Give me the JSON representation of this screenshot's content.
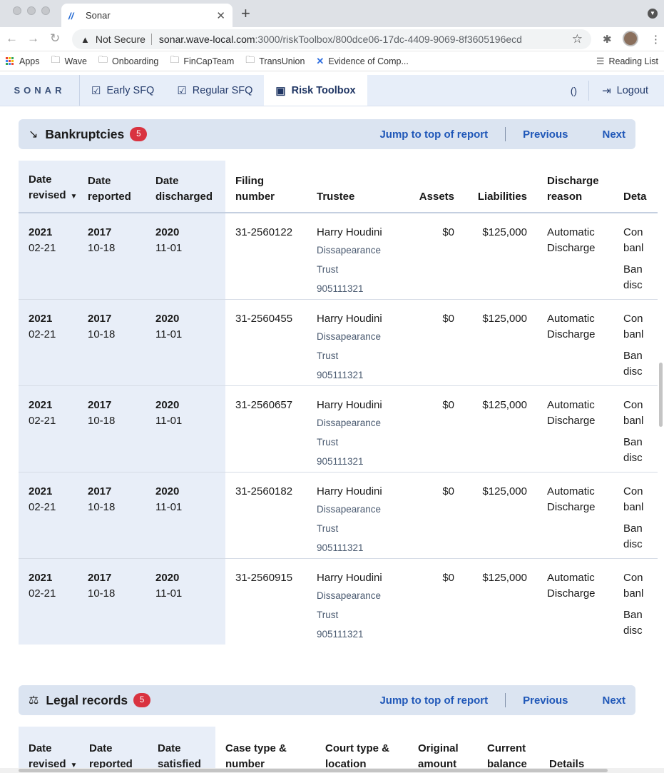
{
  "browser": {
    "tab_title": "Sonar",
    "url_warning": "Not Secure",
    "url_host": "sonar.wave-local.com",
    "url_rest": ":3000/riskToolbox/800dce06-17dc-4409-9069-8f3605196ecd",
    "bookmarks": [
      "Apps",
      "Wave",
      "Onboarding",
      "FinCapTeam",
      "TransUnion",
      "Evidence of Comp..."
    ],
    "reading_list": "Reading List"
  },
  "app": {
    "logo": "SONAR",
    "nav": [
      "Early SFQ",
      "Regular SFQ",
      "Risk Toolbox"
    ],
    "paren": "()",
    "logout": "Logout"
  },
  "bankruptcies": {
    "title": "Bankruptcies",
    "count": "5",
    "jump": "Jump to top of report",
    "previous": "Previous",
    "next": "Next",
    "headers": {
      "date_revised_1": "Date",
      "date_revised_2": "revised",
      "date_reported_1": "Date",
      "date_reported_2": "reported",
      "date_discharged_1": "Date",
      "date_discharged_2": "discharged",
      "filing_1": "Filing",
      "filing_2": "number",
      "trustee": "Trustee",
      "assets": "Assets",
      "liabilities": "Liabilities",
      "reason_1": "Discharge",
      "reason_2": "reason",
      "details": "Deta"
    },
    "rows": [
      {
        "rev_y": "2021",
        "rev_md": "02-21",
        "rep_y": "2017",
        "rep_md": "10-18",
        "dis_y": "2020",
        "dis_md": "11-01",
        "filing": "31-2560122",
        "trustee": "Harry Houdini",
        "trust": "Dissapearance Trust",
        "phone": "905111321",
        "assets": "$0",
        "liabilities": "$125,000",
        "reason_1": "Automatic",
        "reason_2": "Discharge",
        "d1": "Con",
        "d2": "banl",
        "d3": "Ban",
        "d4": "disc"
      },
      {
        "rev_y": "2021",
        "rev_md": "02-21",
        "rep_y": "2017",
        "rep_md": "10-18",
        "dis_y": "2020",
        "dis_md": "11-01",
        "filing": "31-2560455",
        "trustee": "Harry Houdini",
        "trust": "Dissapearance Trust",
        "phone": "905111321",
        "assets": "$0",
        "liabilities": "$125,000",
        "reason_1": "Automatic",
        "reason_2": "Discharge",
        "d1": "Con",
        "d2": "banl",
        "d3": "Ban",
        "d4": "disc"
      },
      {
        "rev_y": "2021",
        "rev_md": "02-21",
        "rep_y": "2017",
        "rep_md": "10-18",
        "dis_y": "2020",
        "dis_md": "11-01",
        "filing": "31-2560657",
        "trustee": "Harry Houdini",
        "trust": "Dissapearance Trust",
        "phone": "905111321",
        "assets": "$0",
        "liabilities": "$125,000",
        "reason_1": "Automatic",
        "reason_2": "Discharge",
        "d1": "Con",
        "d2": "banl",
        "d3": "Ban",
        "d4": "disc"
      },
      {
        "rev_y": "2021",
        "rev_md": "02-21",
        "rep_y": "2017",
        "rep_md": "10-18",
        "dis_y": "2020",
        "dis_md": "11-01",
        "filing": "31-2560182",
        "trustee": "Harry Houdini",
        "trust": "Dissapearance Trust",
        "phone": "905111321",
        "assets": "$0",
        "liabilities": "$125,000",
        "reason_1": "Automatic",
        "reason_2": "Discharge",
        "d1": "Con",
        "d2": "banl",
        "d3": "Ban",
        "d4": "disc"
      },
      {
        "rev_y": "2021",
        "rev_md": "02-21",
        "rep_y": "2017",
        "rep_md": "10-18",
        "dis_y": "2020",
        "dis_md": "11-01",
        "filing": "31-2560915",
        "trustee": "Harry Houdini",
        "trust": "Dissapearance Trust",
        "phone": "905111321",
        "assets": "$0",
        "liabilities": "$125,000",
        "reason_1": "Automatic",
        "reason_2": "Discharge",
        "d1": "Con",
        "d2": "banl",
        "d3": "Ban",
        "d4": "disc"
      }
    ]
  },
  "legal": {
    "title": "Legal records",
    "count": "5",
    "jump": "Jump to top of report",
    "previous": "Previous",
    "next": "Next",
    "headers": {
      "h1a": "Date",
      "h1b": "revised",
      "h2a": "Date",
      "h2b": "reported",
      "h3a": "Date",
      "h3b": "satisfied",
      "h4a": "Case type &",
      "h4b": "number",
      "h5a": "Court type &",
      "h5b": "location",
      "h6a": "Original",
      "h6b": "amount",
      "h7a": "Current",
      "h7b": "balance",
      "h8": "Details"
    }
  }
}
